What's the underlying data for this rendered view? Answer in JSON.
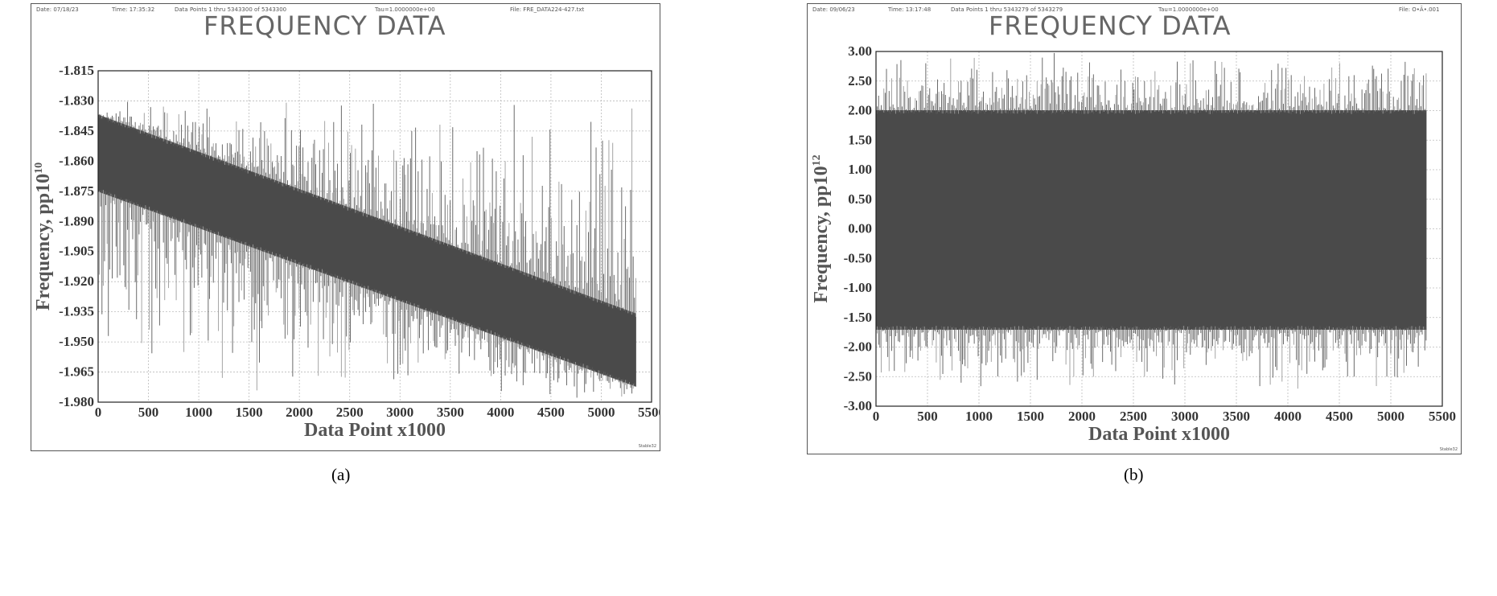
{
  "panels": [
    {
      "header": {
        "date": "Date: 07/18/23",
        "time": "Time: 17:35:32",
        "points": "Data Points 1 thru 5343300 of 5343300",
        "tau": "Tau=1.0000000e+00",
        "file": "File: FRE_DATA224-427.txt"
      },
      "title": "FREQUENCY DATA",
      "corner": "Stable32",
      "caption": "(a)"
    },
    {
      "header": {
        "date": "Date: 09/06/23",
        "time": "Time: 13:17:48",
        "points": "Data Points 1 thru 5343279 of 5343279",
        "tau": "Tau=1.0000000e+00",
        "file": "File: O•Ã•.001"
      },
      "title": "FREQUENCY DATA",
      "corner": "Stable32",
      "caption": "(b)"
    }
  ],
  "chart_data": [
    {
      "type": "line",
      "title": "FREQUENCY DATA",
      "xlabel": "Data Point x1000",
      "ylabel": "Frequency, pp10",
      "ylabel_exponent": "10",
      "xlim": [
        0,
        5500
      ],
      "ylim": [
        -1.98,
        -1.815
      ],
      "xticks": [
        "0",
        "500",
        "1000",
        "1500",
        "2000",
        "2500",
        "3000",
        "3500",
        "4000",
        "4500",
        "5000",
        "5500"
      ],
      "yticks": [
        "-1.815",
        "-1.830",
        "-1.845",
        "-1.860",
        "-1.875",
        "-1.890",
        "-1.905",
        "-1.920",
        "-1.935",
        "-1.950",
        "-1.965",
        "-1.980"
      ],
      "grid": true,
      "series": [
        {
          "x": [
            0,
            5343
          ],
          "upper": [
            -1.837,
            -1.936
          ],
          "lower": [
            -1.875,
            -1.972
          ],
          "color": "#4a4a4a"
        }
      ],
      "spike_top": -1.83,
      "spike_bottom": -1.979
    },
    {
      "type": "line",
      "title": "FREQUENCY DATA",
      "xlabel": "Data Point x1000",
      "ylabel": "Frequency, pp10",
      "ylabel_exponent": "12",
      "xlim": [
        0,
        5500
      ],
      "ylim": [
        -3.0,
        3.0
      ],
      "xticks": [
        "0",
        "500",
        "1000",
        "1500",
        "2000",
        "2500",
        "3000",
        "3500",
        "4000",
        "4500",
        "5000",
        "5500"
      ],
      "yticks": [
        "3.00",
        "2.50",
        "2.00",
        "1.50",
        "1.00",
        "0.50",
        "0.00",
        "-0.50",
        "-1.00",
        "-1.50",
        "-2.00",
        "-2.50",
        "-3.00"
      ],
      "grid": true,
      "series": [
        {
          "x": [
            0,
            5343
          ],
          "upper": [
            2.0,
            2.0
          ],
          "lower": [
            -1.7,
            -1.7
          ],
          "color": "#4a4a4a"
        }
      ],
      "spike_top": 3.0,
      "spike_bottom": -2.75
    }
  ]
}
